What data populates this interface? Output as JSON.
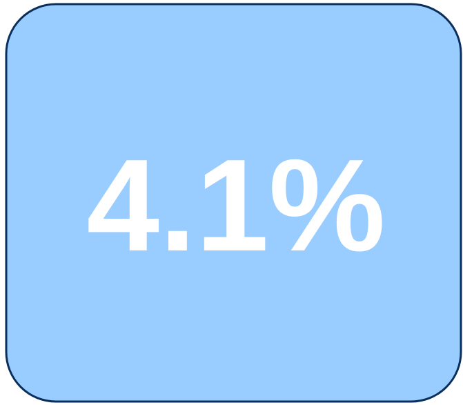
{
  "tile": {
    "text": "4.1%"
  }
}
